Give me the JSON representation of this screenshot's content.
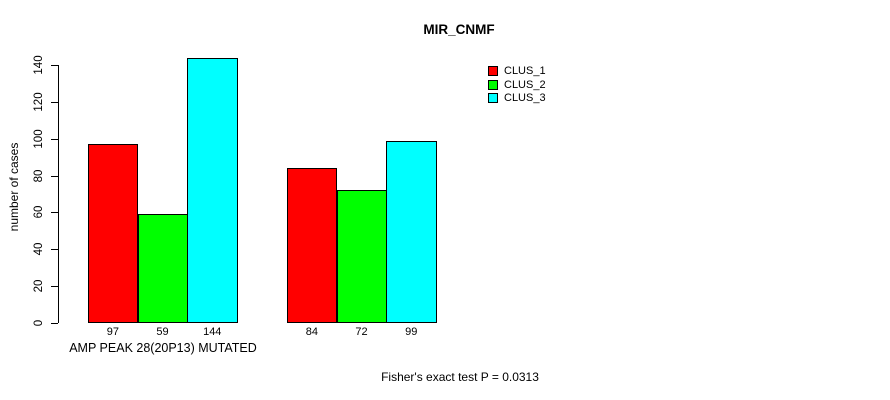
{
  "chart_data": {
    "type": "bar",
    "title": "MIR_CNMF",
    "ylabel": "number of cases",
    "xlabel": "",
    "categories": [
      "AMP PEAK 28(20P13) MUTATED",
      ""
    ],
    "series": [
      {
        "name": "CLUS_1",
        "color": "#ff0000",
        "values": [
          97,
          84
        ]
      },
      {
        "name": "CLUS_2",
        "color": "#00ff00",
        "values": [
          59,
          72
        ]
      },
      {
        "name": "CLUS_3",
        "color": "#00ffff",
        "values": [
          144,
          99
        ]
      }
    ],
    "bar_labels": [
      [
        97,
        59,
        144
      ],
      [
        84,
        72,
        99
      ]
    ],
    "ylim": [
      0,
      140
    ],
    "yticks": [
      0,
      20,
      40,
      60,
      80,
      100,
      120,
      140
    ],
    "grid": false,
    "legend_position": "top-right",
    "footnote": "Fisher's exact test P = 0.0313",
    "bar_border_color": "#000000",
    "axis_color": "#000000"
  }
}
